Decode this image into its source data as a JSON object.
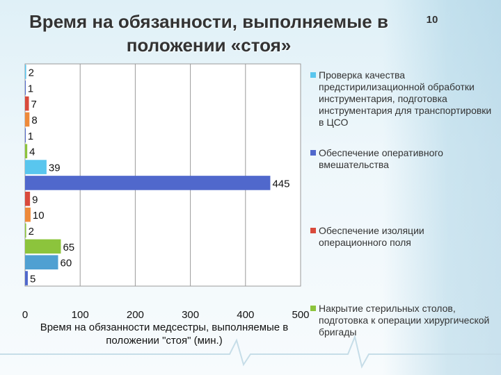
{
  "slide": {
    "title": "Время на обязанности, выполняемые в положении «стоя»",
    "page_number": "10"
  },
  "colors": {
    "light_blue": "#59c6ee",
    "blue": "#5068cc",
    "red": "#d94a3c",
    "orange": "#ee8a3a",
    "green": "#8cc43c",
    "steel_blue": "#4fa0d2"
  },
  "chart_data": {
    "type": "bar",
    "orientation": "horizontal",
    "xlabel": "Время на обязанности медсестры, выполняемые в положении \"стоя\" (мин.)",
    "ylabel": "",
    "xlim": [
      0,
      500
    ],
    "x_ticks": [
      "0",
      "100",
      "200",
      "300",
      "400",
      "500"
    ],
    "grid": true,
    "legend_position": "right",
    "bars": [
      {
        "value": 2,
        "label": "2",
        "color": "#59c6ee"
      },
      {
        "value": 1,
        "label": "1",
        "color": "#5068cc"
      },
      {
        "value": 7,
        "label": "7",
        "color": "#d94a3c"
      },
      {
        "value": 8,
        "label": "8",
        "color": "#ee8a3a"
      },
      {
        "value": 1,
        "label": "1",
        "color": "#5068cc"
      },
      {
        "value": 4,
        "label": "4",
        "color": "#8cc43c"
      },
      {
        "value": 39,
        "label": "39",
        "color": "#59c6ee"
      },
      {
        "value": 445,
        "label": "445",
        "color": "#5068cc"
      },
      {
        "value": 9,
        "label": "9",
        "color": "#d94a3c"
      },
      {
        "value": 10,
        "label": "10",
        "color": "#ee8a3a"
      },
      {
        "value": 2,
        "label": "2",
        "color": "#8cc43c"
      },
      {
        "value": 65,
        "label": "65",
        "color": "#8cc43c"
      },
      {
        "value": 60,
        "label": "60",
        "color": "#4fa0d2"
      },
      {
        "value": 5,
        "label": "5",
        "color": "#5068cc"
      }
    ],
    "legend": [
      {
        "label": "Проверка качества предстирилизационной обработки инструментария, подготовка инструментария для транспортировки в ЦСО",
        "color": "#59c6ee"
      },
      {
        "label": "Обеспечение оперативного вмешательства",
        "color": "#5068cc"
      },
      {
        "label": "Обеспечение изоляции операционного поля",
        "color": "#d94a3c"
      },
      {
        "label": "Накрытие стерильных столов, подготовка к операции хирургической бригады",
        "color": "#8cc43c"
      }
    ]
  }
}
